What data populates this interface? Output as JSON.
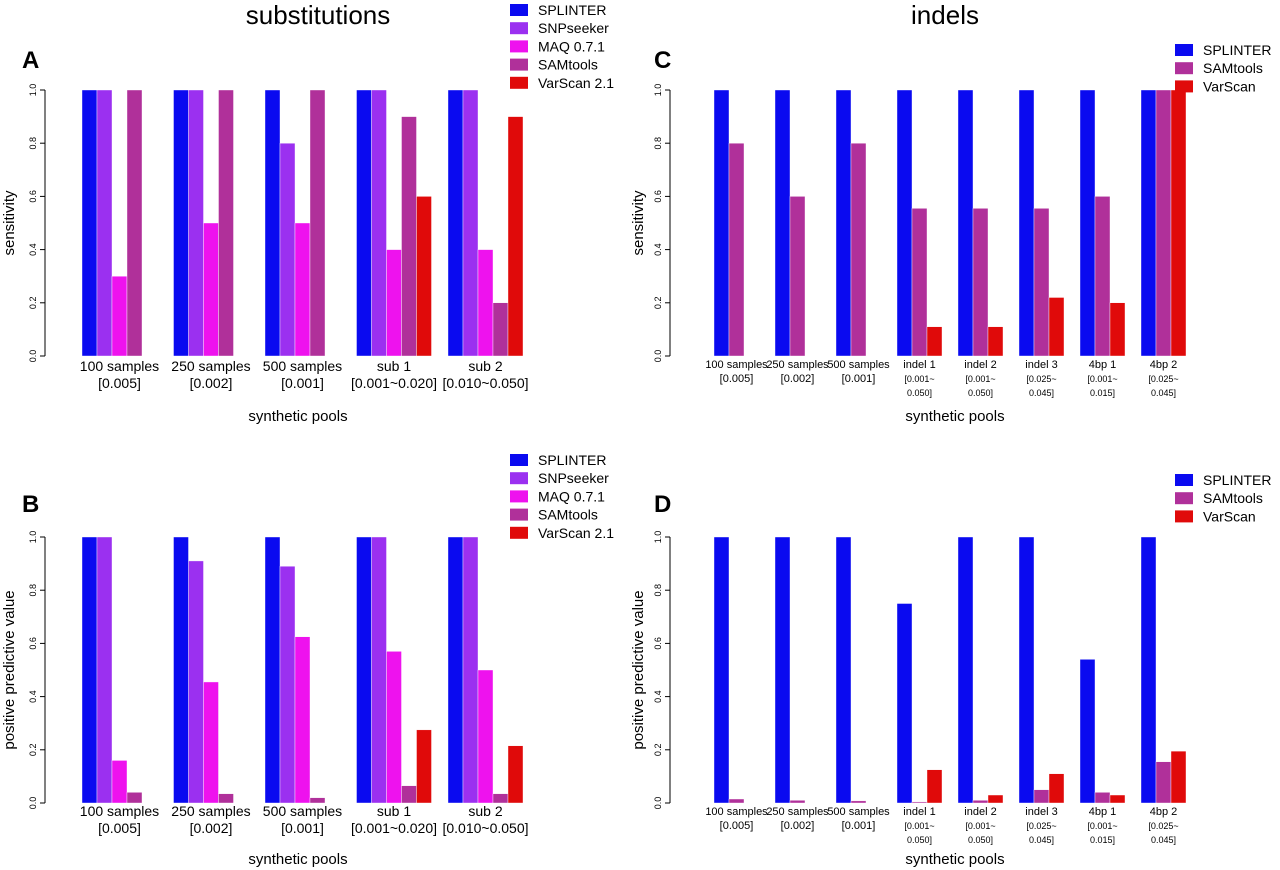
{
  "figure": {
    "col_titles": [
      "substitutions",
      "indels"
    ]
  },
  "chart_data": [
    {
      "panel": "A",
      "type": "bar",
      "xlabel": "synthetic pools",
      "ylabel": "sensitivity",
      "ylim": [
        0,
        1
      ],
      "yticks": [
        "0.0",
        "0.2",
        "0.4",
        "0.6",
        "0.8",
        "1.0"
      ],
      "categories": [
        [
          "100 samples",
          "[0.005]"
        ],
        [
          "250 samples",
          "[0.002]"
        ],
        [
          "500 samples",
          "[0.001]"
        ],
        [
          "sub 1",
          "[0.001~0.020]"
        ],
        [
          "sub 2",
          "[0.010~0.050]"
        ]
      ],
      "legend_position": "top-right",
      "series": [
        {
          "name": "SPLINTER",
          "color": "#0a0af0",
          "values": [
            1,
            1,
            1,
            1,
            1
          ]
        },
        {
          "name": "SNPseeker",
          "color": "#9b30f0",
          "values": [
            1,
            1,
            0.8,
            1,
            1
          ]
        },
        {
          "name": "MAQ 0.7.1",
          "color": "#ee12ee",
          "values": [
            0.3,
            0.5,
            0.5,
            0.4,
            0.4
          ]
        },
        {
          "name": "SAMtools",
          "color": "#b0309a",
          "values": [
            1,
            1,
            1,
            0.9,
            0.2
          ]
        },
        {
          "name": "VarScan 2.1",
          "color": "#e00a0a",
          "values": [
            0,
            0,
            0,
            0.6,
            0.9
          ]
        }
      ]
    },
    {
      "panel": "B",
      "type": "bar",
      "xlabel": "synthetic pools",
      "ylabel": "positive predictive value",
      "ylim": [
        0,
        1
      ],
      "yticks": [
        "0.0",
        "0.2",
        "0.4",
        "0.6",
        "0.8",
        "1.0"
      ],
      "categories": [
        [
          "100 samples",
          "[0.005]"
        ],
        [
          "250 samples",
          "[0.002]"
        ],
        [
          "500 samples",
          "[0.001]"
        ],
        [
          "sub 1",
          "[0.001~0.020]"
        ],
        [
          "sub 2",
          "[0.010~0.050]"
        ]
      ],
      "legend_position": "top-right",
      "series": [
        {
          "name": "SPLINTER",
          "color": "#0a0af0",
          "values": [
            1,
            1,
            1,
            1,
            1
          ]
        },
        {
          "name": "SNPseeker",
          "color": "#9b30f0",
          "values": [
            1,
            0.91,
            0.89,
            1,
            1
          ]
        },
        {
          "name": "MAQ 0.7.1",
          "color": "#ee12ee",
          "values": [
            0.16,
            0.455,
            0.625,
            0.57,
            0.5
          ]
        },
        {
          "name": "SAMtools",
          "color": "#b0309a",
          "values": [
            0.04,
            0.035,
            0.02,
            0.065,
            0.035
          ]
        },
        {
          "name": "VarScan 2.1",
          "color": "#e00a0a",
          "values": [
            0,
            0,
            0,
            0.275,
            0.215
          ]
        }
      ]
    },
    {
      "panel": "C",
      "type": "bar",
      "xlabel": "synthetic pools",
      "ylabel": "sensitivity",
      "ylim": [
        0,
        1
      ],
      "yticks": [
        "0.0",
        "0.2",
        "0.4",
        "0.6",
        "0.8",
        "1.0"
      ],
      "categories": [
        [
          "100 samples",
          "[0.005]"
        ],
        [
          "250 samples",
          "[0.002]"
        ],
        [
          "500 samples",
          "[0.001]"
        ],
        [
          "indel 1",
          "[0.001~",
          "0.050]"
        ],
        [
          "indel 2",
          "[0.001~",
          "0.050]"
        ],
        [
          "indel 3",
          "[0.025~",
          "0.045]"
        ],
        [
          "4bp 1",
          "[0.001~",
          "0.015]"
        ],
        [
          "4bp 2",
          "[0.025~",
          "0.045]"
        ]
      ],
      "legend_position": "top-right",
      "series": [
        {
          "name": "SPLINTER",
          "color": "#0a0af0",
          "values": [
            1,
            1,
            1,
            1,
            1,
            1,
            1,
            1
          ]
        },
        {
          "name": "SAMtools",
          "color": "#b0309a",
          "values": [
            0.8,
            0.6,
            0.8,
            0.555,
            0.555,
            0.555,
            0.6,
            1
          ]
        },
        {
          "name": "VarScan",
          "color": "#e00a0a",
          "values": [
            0,
            0,
            0,
            0.11,
            0.11,
            0.22,
            0.2,
            1
          ]
        }
      ]
    },
    {
      "panel": "D",
      "type": "bar",
      "xlabel": "synthetic pools",
      "ylabel": "positive predictive value",
      "ylim": [
        0,
        1
      ],
      "yticks": [
        "0.0",
        "0.2",
        "0.4",
        "0.6",
        "0.8",
        "1.0"
      ],
      "categories": [
        [
          "100 samples",
          "[0.005]"
        ],
        [
          "250 samples",
          "[0.002]"
        ],
        [
          "500 samples",
          "[0.001]"
        ],
        [
          "indel 1",
          "[0.001~",
          "0.050]"
        ],
        [
          "indel 2",
          "[0.001~",
          "0.050]"
        ],
        [
          "indel 3",
          "[0.025~",
          "0.045]"
        ],
        [
          "4bp 1",
          "[0.001~",
          "0.015]"
        ],
        [
          "4bp 2",
          "[0.025~",
          "0.045]"
        ]
      ],
      "legend_position": "top-right",
      "series": [
        {
          "name": "SPLINTER",
          "color": "#0a0af0",
          "values": [
            1,
            1,
            1,
            0.75,
            1,
            1,
            0.54,
            1
          ]
        },
        {
          "name": "SAMtools",
          "color": "#b0309a",
          "values": [
            0.015,
            0.01,
            0.008,
            0.004,
            0.01,
            0.05,
            0.04,
            0.155
          ]
        },
        {
          "name": "VarScan",
          "color": "#e00a0a",
          "values": [
            0,
            0,
            0,
            0.125,
            0.03,
            0.11,
            0.03,
            0.195
          ]
        }
      ]
    }
  ]
}
